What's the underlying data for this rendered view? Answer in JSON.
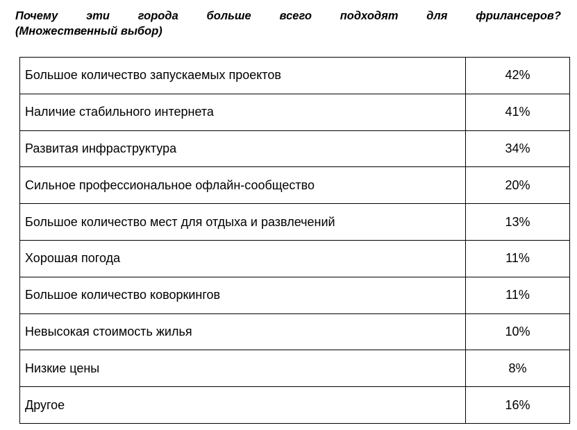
{
  "title": {
    "line1": "Почему эти города больше всего подходят для фрилансеров?",
    "line2": "(Множественный выбор)"
  },
  "table": {
    "rows": [
      {
        "label": "Большое количество запускаемых проектов",
        "value": "42%"
      },
      {
        "label": "Наличие стабильного интернета",
        "value": "41%"
      },
      {
        "label": "Развитая инфраструктура",
        "value": "34%"
      },
      {
        "label": "Сильное профессиональное офлайн-сообщество",
        "value": "20%"
      },
      {
        "label": "Большое количество мест для отдыха и развлечений",
        "value": "13%"
      },
      {
        "label": "Хорошая погода",
        "value": "11%"
      },
      {
        "label": "Большое количество коворкингов",
        "value": "11%"
      },
      {
        "label": "Невысокая стоимость жилья",
        "value": "10%"
      },
      {
        "label": "Низкие цены",
        "value": "8%"
      },
      {
        "label": "Другое",
        "value": "16%"
      }
    ]
  },
  "chart_data": {
    "type": "table",
    "title": "Почему эти города больше всего подходят для фрилансеров? (Множественный выбор)",
    "categories": [
      "Большое количество запускаемых проектов",
      "Наличие стабильного интернета",
      "Развитая инфраструктура",
      "Сильное профессиональное офлайн-сообщество",
      "Большое количество мест для отдыха и развлечений",
      "Хорошая погода",
      "Большое количество коворкингов",
      "Невысокая стоимость жилья",
      "Низкие цены",
      "Другое"
    ],
    "values": [
      42,
      41,
      34,
      20,
      13,
      11,
      11,
      10,
      8,
      16
    ],
    "value_unit": "%"
  },
  "colors": {
    "text": "#000000",
    "border": "#000000",
    "background": "#ffffff"
  }
}
